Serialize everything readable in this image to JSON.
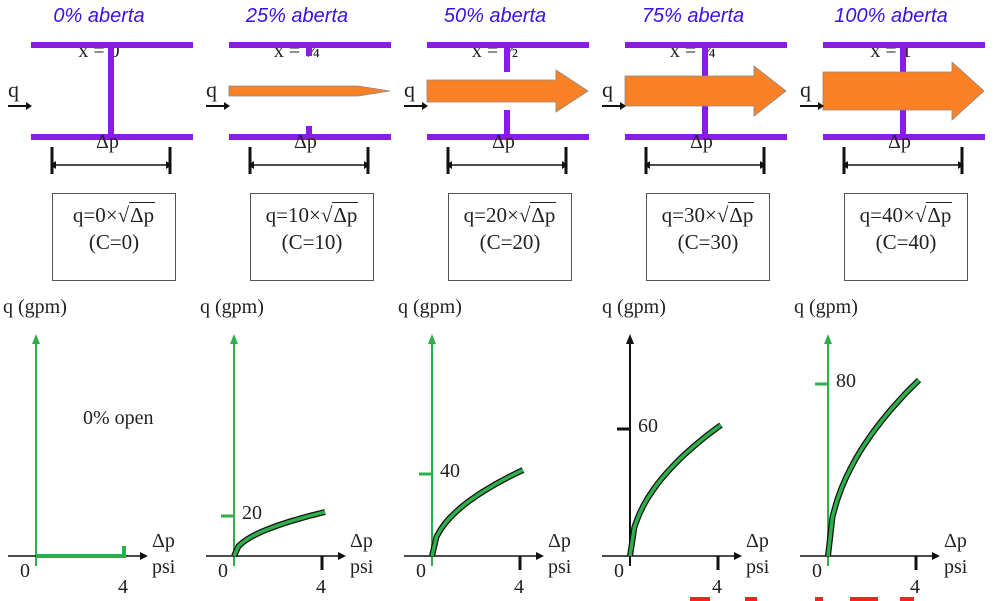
{
  "colors": {
    "title": "#3b10e6",
    "pipe": "#8a1be8",
    "flow_arrow": "#fb8127",
    "curve": "#2db04b",
    "text": "#222222",
    "red_fragment": "#ff2020"
  },
  "panels": [
    {
      "title": "0% aberta",
      "x_label": "x = 0",
      "opening": 0,
      "formula": "q=0×",
      "formula_c": "(C=0)",
      "y_axis_label": "q (gpm)",
      "y_tick": "",
      "note": "0% open",
      "x_axis_label": "Δp",
      "x_units": "psi",
      "x_origin": "0",
      "x_tick": "4"
    },
    {
      "title": "25% aberta",
      "x_label": "x = ¼",
      "opening": 0.25,
      "formula": "q=10×",
      "formula_c": "(C=10)",
      "y_axis_label": "q (gpm)",
      "y_tick": "20",
      "note": "",
      "x_axis_label": "Δp",
      "x_units": "psi",
      "x_origin": "0",
      "x_tick": "4"
    },
    {
      "title": "50% aberta",
      "x_label": "x = ½",
      "opening": 0.5,
      "formula": "q=20×",
      "formula_c": "(C=20)",
      "y_axis_label": "q (gpm)",
      "y_tick": "40",
      "note": "",
      "x_axis_label": "Δp",
      "x_units": "psi",
      "x_origin": "0",
      "x_tick": "4"
    },
    {
      "title": "75% aberta",
      "x_label": "x = ¾",
      "opening": 0.75,
      "formula": "q=30×",
      "formula_c": "(C=30)",
      "y_axis_label": "q (gpm)",
      "y_tick": "60",
      "note": "",
      "x_axis_label": "Δp",
      "x_units": "psi",
      "x_origin": "0",
      "x_tick": "4"
    },
    {
      "title": "100% aberta",
      "x_label": "x = 1",
      "opening": 1,
      "formula": "q=40×",
      "formula_c": "(C=40)",
      "y_axis_label": "q (gpm)",
      "y_tick": "80",
      "note": "",
      "x_axis_label": "Δp",
      "x_units": "psi",
      "x_origin": "0",
      "x_tick": "4"
    }
  ],
  "labels": {
    "flow": "q",
    "dp": "Δp",
    "sqrt_arg": "Δp"
  },
  "chart_data": [
    {
      "type": "line",
      "title": "0% aberta",
      "xlabel": "Δp (psi)",
      "ylabel": "q (gpm)",
      "x": [
        0,
        4
      ],
      "y": [
        0,
        0
      ],
      "annotation": "0% open",
      "xlim": [
        0,
        4
      ]
    },
    {
      "type": "line",
      "title": "25% aberta",
      "xlabel": "Δp (psi)",
      "ylabel": "q (gpm)",
      "x": [
        0,
        0.5,
        1,
        2,
        3,
        4
      ],
      "y": [
        0,
        7,
        10,
        14,
        17,
        20
      ],
      "xlim": [
        0,
        4
      ],
      "y_ticks": [
        20
      ]
    },
    {
      "type": "line",
      "title": "50% aberta",
      "xlabel": "Δp (psi)",
      "ylabel": "q (gpm)",
      "x": [
        0,
        0.5,
        1,
        2,
        3,
        4
      ],
      "y": [
        0,
        14,
        20,
        28,
        35,
        40
      ],
      "xlim": [
        0,
        4
      ],
      "y_ticks": [
        40
      ]
    },
    {
      "type": "line",
      "title": "75% aberta",
      "xlabel": "Δp (psi)",
      "ylabel": "q (gpm)",
      "x": [
        0,
        0.5,
        1,
        2,
        3,
        4
      ],
      "y": [
        0,
        21,
        30,
        42,
        52,
        60
      ],
      "xlim": [
        0,
        4
      ],
      "y_ticks": [
        60
      ]
    },
    {
      "type": "line",
      "title": "100% aberta",
      "xlabel": "Δp (psi)",
      "ylabel": "q (gpm)",
      "x": [
        0,
        0.5,
        1,
        2,
        3,
        4
      ],
      "y": [
        0,
        28,
        40,
        57,
        69,
        80
      ],
      "xlim": [
        0,
        4
      ],
      "y_ticks": [
        80
      ]
    }
  ]
}
